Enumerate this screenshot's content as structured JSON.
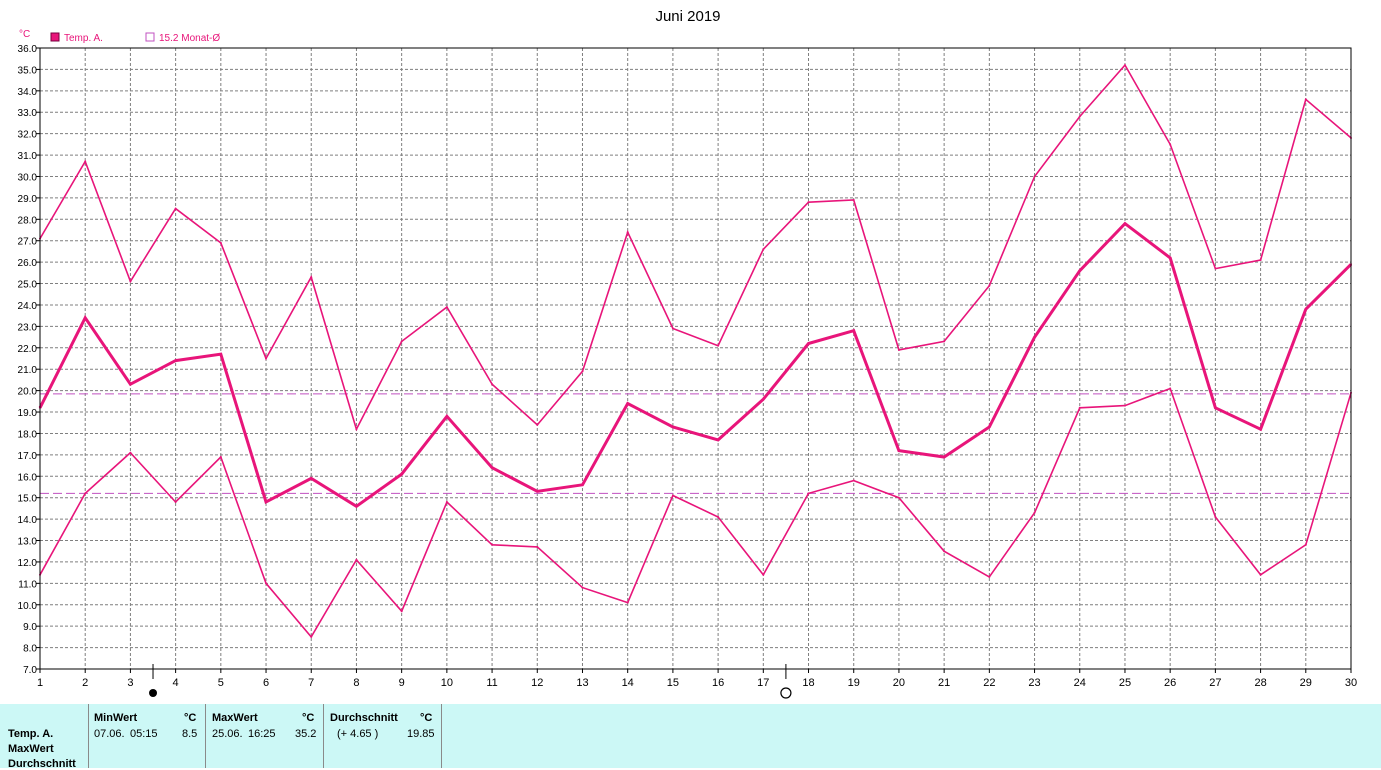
{
  "chart_data": {
    "type": "line",
    "title": "Juni 2019",
    "unit": "°C",
    "x": [
      1,
      2,
      3,
      4,
      5,
      6,
      7,
      8,
      9,
      10,
      11,
      12,
      13,
      14,
      15,
      16,
      17,
      18,
      19,
      20,
      21,
      22,
      23,
      24,
      25,
      26,
      27,
      28,
      29,
      30
    ],
    "ylim": [
      7.0,
      36.0
    ],
    "ytick_step": 1.0,
    "grid": true,
    "series": [
      {
        "role": "max",
        "values": [
          27.1,
          30.7,
          25.1,
          28.5,
          26.9,
          21.5,
          25.3,
          18.2,
          22.3,
          23.9,
          20.3,
          18.4,
          20.9,
          27.4,
          22.9,
          22.1,
          26.6,
          28.8,
          28.9,
          21.9,
          22.3,
          24.9,
          30.0,
          32.8,
          35.2,
          31.5,
          25.7,
          26.1,
          33.6,
          31.8
        ]
      },
      {
        "role": "avg",
        "values": [
          19.2,
          23.4,
          20.3,
          21.4,
          21.7,
          14.8,
          15.9,
          14.6,
          16.1,
          18.8,
          16.4,
          15.3,
          15.6,
          19.4,
          18.3,
          17.7,
          19.6,
          22.2,
          22.8,
          17.2,
          16.9,
          18.3,
          22.5,
          25.6,
          27.8,
          26.2,
          19.2,
          18.2,
          23.8,
          25.9
        ]
      },
      {
        "role": "min",
        "values": [
          11.4,
          15.2,
          17.1,
          14.8,
          16.9,
          11.0,
          8.5,
          12.1,
          9.7,
          14.8,
          12.8,
          12.7,
          10.8,
          10.1,
          15.1,
          14.1,
          11.4,
          15.2,
          15.8,
          15.0,
          12.5,
          11.3,
          14.3,
          19.2,
          19.3,
          20.1,
          14.1,
          11.4,
          12.8,
          19.9
        ]
      }
    ],
    "reference_lines": [
      {
        "name": "Monat-Ø",
        "value": 15.2
      },
      {
        "name": "Durchschnitt",
        "value": 19.85
      }
    ],
    "moon_phases": [
      {
        "day_position": 3.5,
        "symbol": "new-moon"
      },
      {
        "day_position": 17.5,
        "symbol": "full-moon"
      }
    ],
    "legend": [
      {
        "label": "Temp. A.",
        "filled": true
      },
      {
        "label": "15.2 Monat-Ø",
        "filled": false
      }
    ],
    "y_unit_label": "°C"
  },
  "stats": {
    "row_labels": [
      "Temp. A.",
      "MaxWert",
      "Durchschnitt"
    ],
    "min": {
      "header": "MinWert",
      "unit": "°C",
      "date": "07.06.",
      "time": "05:15",
      "value": "8.5"
    },
    "max": {
      "header": "MaxWert",
      "unit": "°C",
      "date": "25.06.",
      "time": "16:25",
      "value": "35.2"
    },
    "avg": {
      "header": "Durchschnitt",
      "unit": "°C",
      "delta": "(+ 4.65 )",
      "value": "19.85"
    }
  },
  "colors": {
    "line": "#e8157a",
    "grid": "#7f7f7f",
    "reference": "#c050c0",
    "stats_bg": "#ccf8f6"
  }
}
